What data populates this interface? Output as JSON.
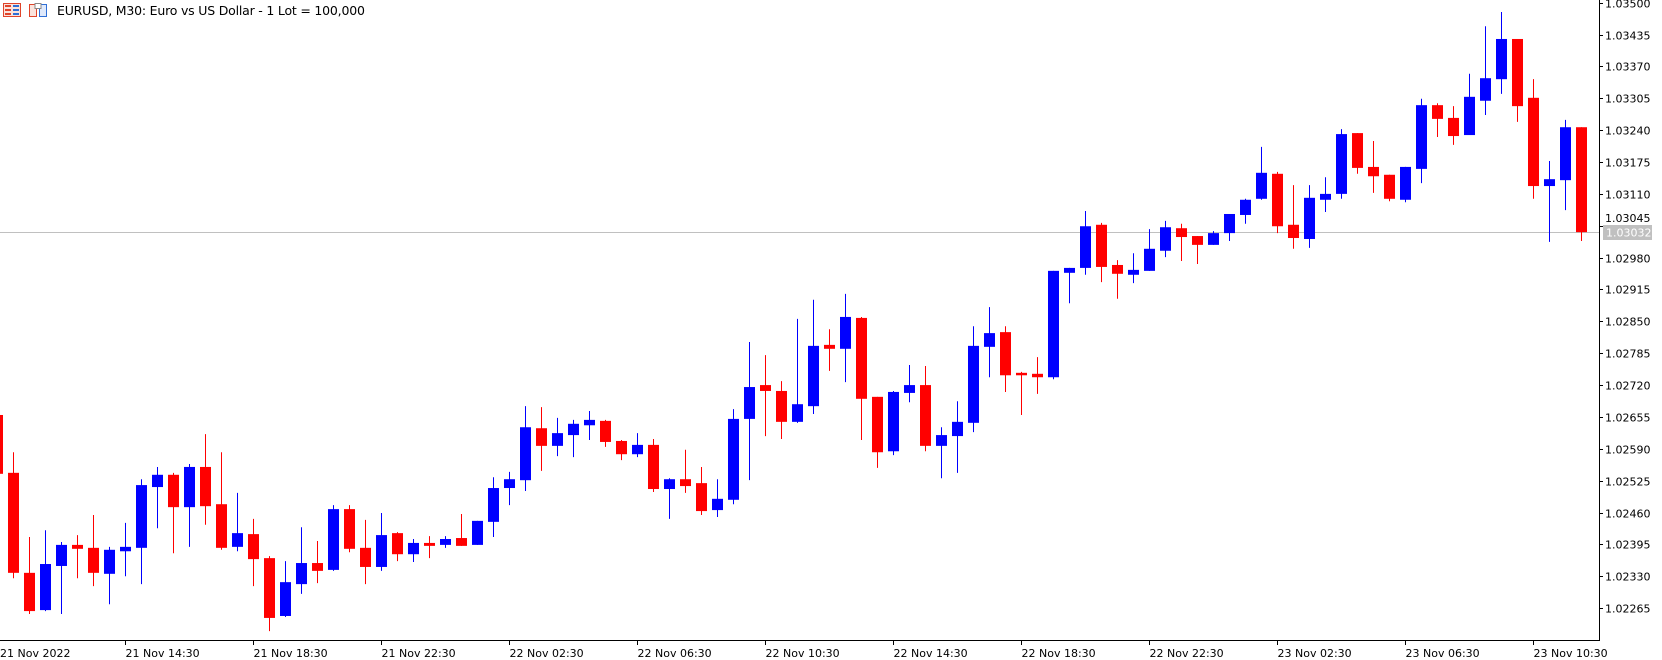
{
  "header": {
    "title": "EURUSD, M30:  Euro vs US Dollar - 1 Lot = 100,000",
    "icons": [
      "chart-list-icon",
      "symbol-spec-icon"
    ]
  },
  "colors": {
    "bull": "#0000ff",
    "bear": "#ff0000",
    "axis": "#000000",
    "price_line": "#c0c0c0",
    "price_tag_bg": "#c0c0c0"
  },
  "chart_data": {
    "type": "candlestick",
    "symbol": "EURUSD",
    "timeframe": "M30",
    "ylim": [
      1.022,
      1.035
    ],
    "grid": false,
    "y_ticks": [
      "1.03500",
      "1.03435",
      "1.03370",
      "1.03305",
      "1.03240",
      "1.03175",
      "1.03110",
      "1.03045",
      "1.02980",
      "1.02915",
      "1.02850",
      "1.02785",
      "1.02720",
      "1.02655",
      "1.02590",
      "1.02525",
      "1.02460",
      "1.02395",
      "1.02330",
      "1.02265"
    ],
    "x_ticks": [
      "21 Nov 2022",
      "21 Nov 14:30",
      "21 Nov 18:30",
      "21 Nov 22:30",
      "22 Nov 02:30",
      "22 Nov 06:30",
      "22 Nov 10:30",
      "22 Nov 14:30",
      "22 Nov 18:30",
      "22 Nov 22:30",
      "23 Nov 02:30",
      "23 Nov 06:30",
      "23 Nov 10:30"
    ],
    "current_price": "1.03032",
    "ohlc_fields": [
      "open",
      "high",
      "low",
      "close"
    ],
    "candles": [
      [
        1.02659,
        1.02659,
        1.02539,
        1.02539
      ],
      [
        1.02541,
        1.02583,
        1.02326,
        1.02337
      ],
      [
        1.02337,
        1.0241,
        1.02253,
        1.02259
      ],
      [
        1.02261,
        1.02424,
        1.02259,
        1.02355
      ],
      [
        1.02351,
        1.024,
        1.02253,
        1.02394
      ],
      [
        1.02394,
        1.02414,
        1.02326,
        1.02386
      ],
      [
        1.02388,
        1.02455,
        1.0231,
        1.02337
      ],
      [
        1.02335,
        1.0239,
        1.02273,
        1.02384
      ],
      [
        1.02381,
        1.02439,
        1.0233,
        1.0239
      ],
      [
        1.02388,
        1.02528,
        1.02314,
        1.02516
      ],
      [
        1.02512,
        1.02553,
        1.02428,
        1.02537
      ],
      [
        1.02537,
        1.02541,
        1.02377,
        1.02471
      ],
      [
        1.02471,
        1.02559,
        1.0239,
        1.02553
      ],
      [
        1.02553,
        1.0262,
        1.02435,
        1.02473
      ],
      [
        1.02477,
        1.02583,
        1.02384,
        1.02388
      ],
      [
        1.0239,
        1.025,
        1.02381,
        1.02418
      ],
      [
        1.02416,
        1.02447,
        1.0231,
        1.02365
      ],
      [
        1.02367,
        1.02371,
        1.02218,
        1.02245
      ],
      [
        1.02249,
        1.02361,
        1.02247,
        1.02318
      ],
      [
        1.02314,
        1.0243,
        1.02294,
        1.02357
      ],
      [
        1.02357,
        1.02402,
        1.02316,
        1.02341
      ],
      [
        1.02343,
        1.02475,
        1.02341,
        1.02467
      ],
      [
        1.02467,
        1.02475,
        1.02379,
        1.02386
      ],
      [
        1.02388,
        1.02445,
        1.02314,
        1.02349
      ],
      [
        1.02349,
        1.02459,
        1.02341,
        1.02414
      ],
      [
        1.02418,
        1.0242,
        1.02361,
        1.02375
      ],
      [
        1.02375,
        1.02406,
        1.02359,
        1.02398
      ],
      [
        1.02398,
        1.02412,
        1.02367,
        1.02392
      ],
      [
        1.02394,
        1.02412,
        1.02388,
        1.02406
      ],
      [
        1.02408,
        1.02457,
        1.02392,
        1.02392
      ],
      [
        1.02394,
        1.02443,
        1.02394,
        1.02443
      ],
      [
        1.02441,
        1.02532,
        1.0241,
        1.0251
      ],
      [
        1.0251,
        1.02543,
        1.02475,
        1.02528
      ],
      [
        1.02526,
        1.02677,
        1.02504,
        1.02634
      ],
      [
        1.02632,
        1.02675,
        1.02545,
        1.02596
      ],
      [
        1.02596,
        1.02653,
        1.02575,
        1.02622
      ],
      [
        1.02618,
        1.02649,
        1.02573,
        1.02641
      ],
      [
        1.02638,
        1.02667,
        1.02608,
        1.02649
      ],
      [
        1.02647,
        1.02649,
        1.02594,
        1.02604
      ],
      [
        1.02606,
        1.02608,
        1.02567,
        1.02579
      ],
      [
        1.02579,
        1.02622,
        1.02573,
        1.02598
      ],
      [
        1.02598,
        1.0261,
        1.02502,
        1.02508
      ],
      [
        1.02508,
        1.0253,
        1.02447,
        1.02528
      ],
      [
        1.02528,
        1.02588,
        1.025,
        1.02514
      ],
      [
        1.0252,
        1.02553,
        1.02455,
        1.02463
      ],
      [
        1.02465,
        1.02528,
        1.02451,
        1.02488
      ],
      [
        1.02486,
        1.02671,
        1.02477,
        1.02651
      ],
      [
        1.02651,
        1.02808,
        1.02526,
        1.02716
      ],
      [
        1.0272,
        1.02781,
        1.02616,
        1.02708
      ],
      [
        1.02708,
        1.02728,
        1.0261,
        1.02645
      ],
      [
        1.02645,
        1.02855,
        1.02643,
        1.02681
      ],
      [
        1.02677,
        1.02894,
        1.02661,
        1.028
      ],
      [
        1.02802,
        1.02834,
        1.02749,
        1.02794
      ],
      [
        1.02794,
        1.02906,
        1.02726,
        1.02859
      ],
      [
        1.02857,
        1.02859,
        1.02608,
        1.02692
      ],
      [
        1.02696,
        1.02696,
        1.02551,
        1.02583
      ],
      [
        1.02585,
        1.02708,
        1.02577,
        1.02706
      ],
      [
        1.02704,
        1.02761,
        1.02685,
        1.0272
      ],
      [
        1.0272,
        1.02759,
        1.02585,
        1.02596
      ],
      [
        1.02596,
        1.02634,
        1.0253,
        1.02618
      ],
      [
        1.02616,
        1.02687,
        1.02541,
        1.02645
      ],
      [
        1.02643,
        1.0284,
        1.02624,
        1.028
      ],
      [
        1.02798,
        1.02879,
        1.02736,
        1.02826
      ],
      [
        1.02828,
        1.0284,
        1.02706,
        1.0274
      ],
      [
        1.02745,
        1.02747,
        1.02659,
        1.0274
      ],
      [
        1.02743,
        1.02777,
        1.02702,
        1.02736
      ],
      [
        1.02736,
        1.02953,
        1.02732,
        1.02953
      ],
      [
        1.02949,
        1.02959,
        1.02887,
        1.02959
      ],
      [
        1.02959,
        1.03075,
        1.02945,
        1.03044
      ],
      [
        1.03047,
        1.03051,
        1.0293,
        1.02961
      ],
      [
        1.02965,
        1.02975,
        1.02896,
        1.02947
      ],
      [
        1.02945,
        1.02989,
        1.02928,
        1.02955
      ],
      [
        1.02953,
        1.03038,
        1.02953,
        1.02998
      ],
      [
        1.02994,
        1.03055,
        1.02981,
        1.03042
      ],
      [
        1.0304,
        1.03049,
        1.02973,
        1.03022
      ],
      [
        1.03024,
        1.03024,
        1.02967,
        1.03006
      ],
      [
        1.03006,
        1.03034,
        1.03006,
        1.0303
      ],
      [
        1.0303,
        1.03069,
        1.03014,
        1.03069
      ],
      [
        1.03067,
        1.031,
        1.03049,
        1.03098
      ],
      [
        1.031,
        1.03206,
        1.03098,
        1.03153
      ],
      [
        1.03151,
        1.03155,
        1.0303,
        1.03044
      ],
      [
        1.03047,
        1.03128,
        1.02998,
        1.0302
      ],
      [
        1.03018,
        1.03128,
        1.03,
        1.03102
      ],
      [
        1.03098,
        1.03144,
        1.03073,
        1.0311
      ],
      [
        1.0311,
        1.03242,
        1.031,
        1.03232
      ],
      [
        1.03234,
        1.03234,
        1.03151,
        1.03163
      ],
      [
        1.03165,
        1.03218,
        1.03112,
        1.03146
      ],
      [
        1.03149,
        1.03149,
        1.03095,
        1.031
      ],
      [
        1.03098,
        1.03165,
        1.03093,
        1.03165
      ],
      [
        1.03161,
        1.03304,
        1.03132,
        1.03291
      ],
      [
        1.03291,
        1.03295,
        1.03226,
        1.03263
      ],
      [
        1.03265,
        1.03289,
        1.0321,
        1.03228
      ],
      [
        1.0323,
        1.03355,
        1.0323,
        1.03308
      ],
      [
        1.033,
        1.03452,
        1.03271,
        1.03346
      ],
      [
        1.03344,
        1.03481,
        1.03314,
        1.03426
      ],
      [
        1.03426,
        1.03426,
        1.03257,
        1.03289
      ],
      [
        1.03306,
        1.03344,
        1.031,
        1.03126
      ],
      [
        1.03126,
        1.03177,
        1.03012,
        1.0314
      ],
      [
        1.03138,
        1.03261,
        1.03077,
        1.03246
      ],
      [
        1.03246,
        1.03246,
        1.03014,
        1.03032
      ]
    ]
  }
}
